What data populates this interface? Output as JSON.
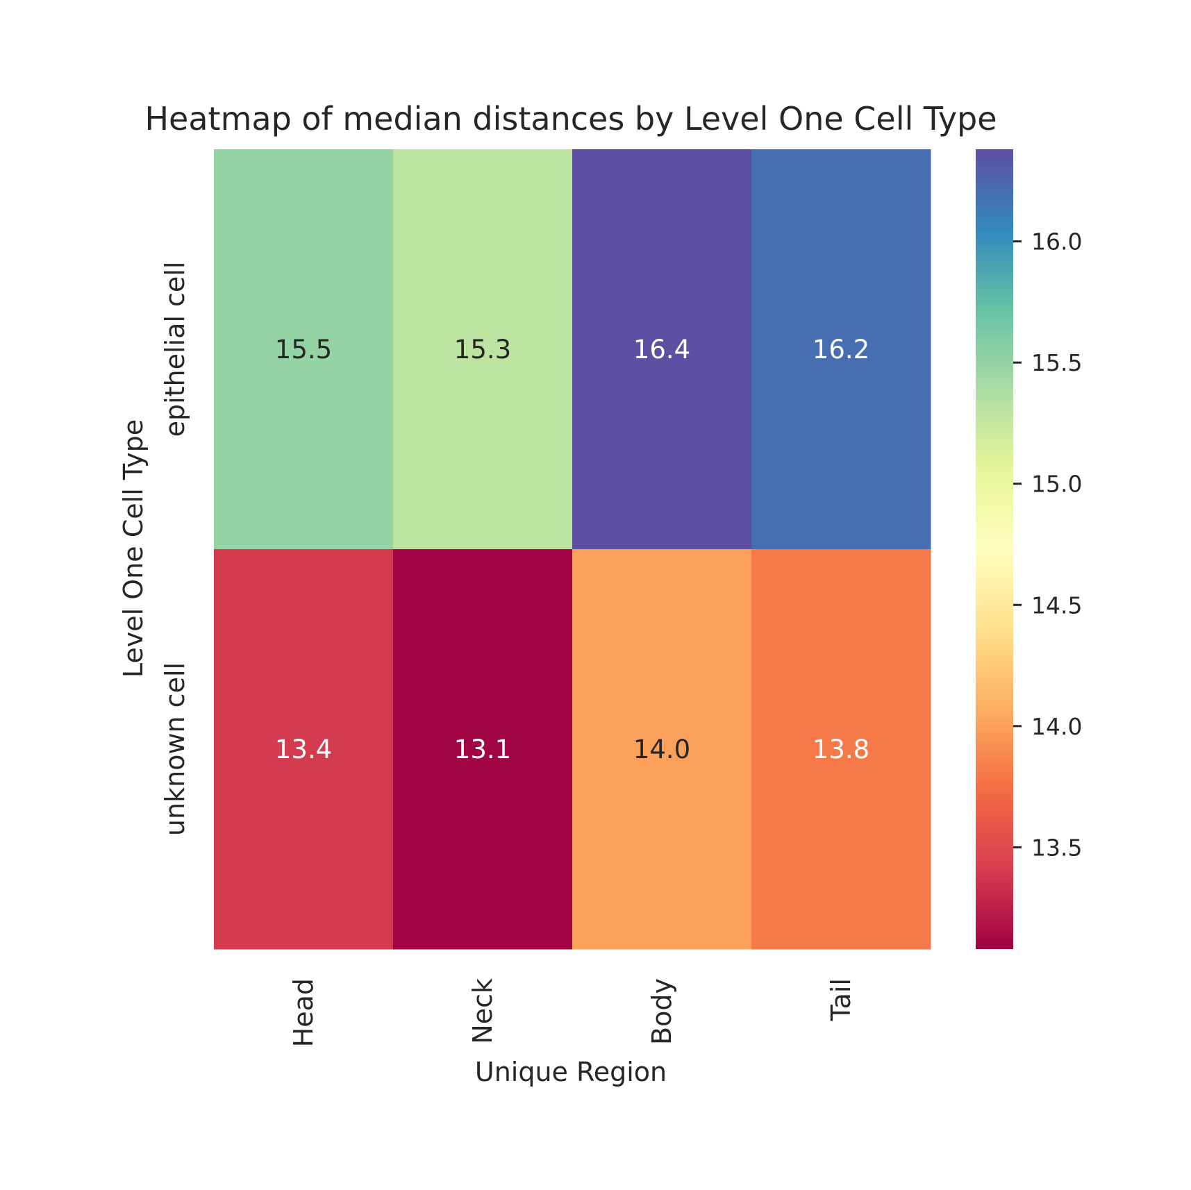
{
  "chart_data": {
    "type": "heatmap",
    "title": "Heatmap of median distances by Level One Cell Type",
    "xlabel": "Unique Region",
    "ylabel": "Level One Cell Type",
    "x_categories": [
      "Head",
      "Neck",
      "Body",
      "Tail"
    ],
    "y_categories": [
      "epithelial cell",
      "unknown cell"
    ],
    "values": [
      [
        15.5,
        15.3,
        16.4,
        16.2
      ],
      [
        13.4,
        13.1,
        14.0,
        13.8
      ]
    ],
    "cell_labels": [
      [
        "15.5",
        "15.3",
        "16.4",
        "16.2"
      ],
      [
        "13.4",
        "13.1",
        "14.0",
        "13.8"
      ]
    ],
    "colormap": "Spectral",
    "colorbar": {
      "range": [
        13.08,
        16.38
      ],
      "ticks": [
        13.5,
        14.0,
        14.5,
        15.0,
        15.5,
        16.0
      ],
      "tick_labels": [
        "13.5",
        "14.0",
        "14.5",
        "15.0",
        "15.5",
        "16.0"
      ]
    },
    "grid": false,
    "legend": "colorbar-right"
  }
}
